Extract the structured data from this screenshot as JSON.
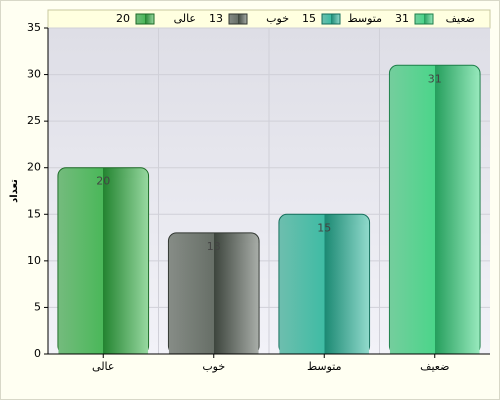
{
  "chart_data": {
    "type": "bar",
    "y_label": "تعداد",
    "categories": [
      "عالی",
      "خوب",
      "متوسط",
      "ضعیف"
    ],
    "values": [
      20,
      13,
      15,
      31
    ],
    "colors": [
      "#2fb040",
      "#505a50",
      "#22b598",
      "#30d27a"
    ],
    "ylim": [
      0,
      35
    ],
    "yticks": [
      0,
      5,
      10,
      15,
      20,
      25,
      30,
      35
    ],
    "grid": true
  }
}
